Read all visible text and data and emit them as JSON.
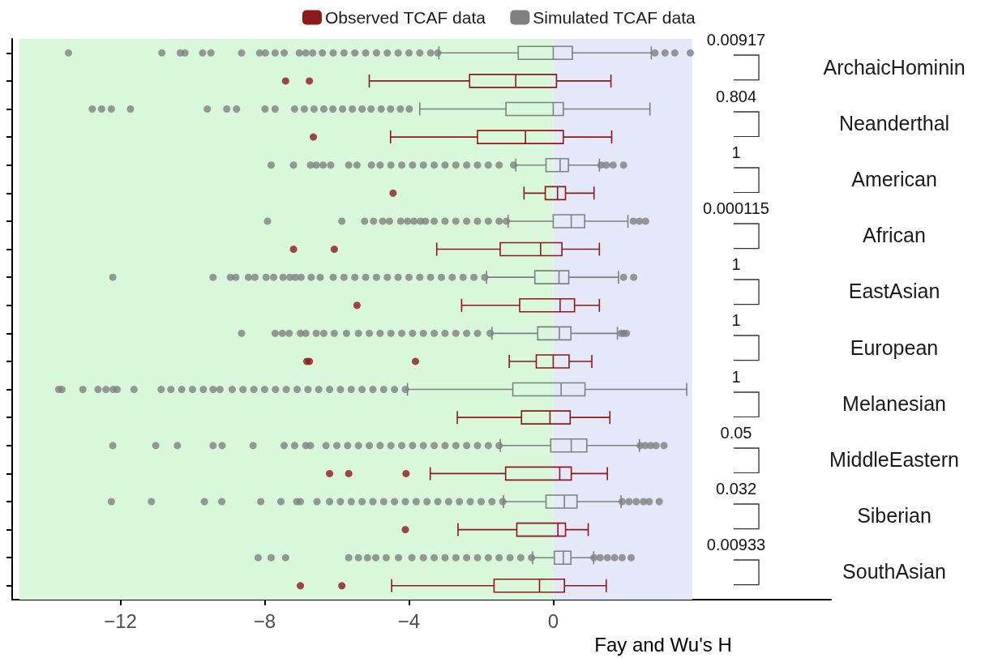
{
  "chart_data": {
    "type": "box",
    "orientation": "horizontal",
    "xlabel": "Fay and Wu's H",
    "legend": "top",
    "xlim": [
      -15,
      7.7
    ],
    "xticks": [
      {
        "value": -12,
        "label": "−12"
      },
      {
        "value": -8,
        "label": "−8"
      },
      {
        "value": -4,
        "label": "−4"
      },
      {
        "value": 0,
        "label": "0"
      }
    ],
    "categories": [
      "ArchaicHominin",
      "Neanderthal",
      "American",
      "African",
      "EastAsian",
      "European",
      "Melanesian",
      "MiddleEastern",
      "Siberian",
      "SouthAsian"
    ],
    "bands": [
      {
        "axis": "x",
        "from": -14.8,
        "to": 0,
        "color": "#d9f7da"
      },
      {
        "axis": "x",
        "from": 0,
        "to": 3.85,
        "color": "#e5e8f8"
      }
    ],
    "series": [
      {
        "name": "Observed TCAF data",
        "color": "#8b1a1a",
        "boxes": [
          {
            "low": -5.1,
            "q1": -2.32,
            "median": -1.04,
            "q3": 0.09,
            "high": 1.6,
            "outliers": [
              -7.42,
              -6.76
            ]
          },
          {
            "low": -4.51,
            "q1": -2.1,
            "median": -0.77,
            "q3": 0.28,
            "high": 1.62,
            "outliers": [
              -6.65
            ]
          },
          {
            "low": -0.81,
            "q1": -0.22,
            "median": 0.12,
            "q3": 0.34,
            "high": 1.13,
            "outliers": [
              -4.44
            ]
          },
          {
            "low": -3.23,
            "q1": -1.47,
            "median": -0.35,
            "q3": 0.24,
            "high": 1.28,
            "outliers": [
              -7.2,
              -6.07
            ]
          },
          {
            "low": -2.54,
            "q1": -0.93,
            "median": 0.19,
            "q3": 0.59,
            "high": 1.28,
            "outliers": [
              -5.44
            ]
          },
          {
            "low": -1.22,
            "q1": -0.47,
            "median": 0,
            "q3": 0.44,
            "high": 1.07,
            "outliers": [
              -6.83,
              -6.76,
              -3.82
            ]
          },
          {
            "low": -2.66,
            "q1": -0.88,
            "median": -0.09,
            "q3": 0.47,
            "high": 1.57
          },
          {
            "low": -3.41,
            "q1": -1.32,
            "median": 0.18,
            "q3": 0.5,
            "high": 1.5,
            "outliers": [
              -6.2,
              -5.67,
              -4.08
            ]
          },
          {
            "low": -2.64,
            "q1": -1.01,
            "median": 0.13,
            "q3": 0.34,
            "high": 0.97,
            "outliers": [
              -4.1
            ]
          },
          {
            "low": -4.48,
            "q1": -1.64,
            "median": -0.38,
            "q3": 0.31,
            "high": 1.47,
            "outliers": [
              -7.01,
              -5.86
            ]
          }
        ]
      },
      {
        "name": "Simulated TCAF data",
        "color": "#808080",
        "boxes": [
          {
            "low": -3.17,
            "q1": -0.97,
            "median": 0,
            "q3": 0.53,
            "high": 2.72,
            "outliers": [
              -13.44,
              -10.85,
              -10.34,
              -10.21,
              -9.72,
              -9.49,
              -8.64,
              -8.14,
              -7.98,
              -7.71,
              -7.46,
              -7.04,
              -6.86,
              -6.67,
              -6.4,
              -6.1,
              -5.8,
              -5.5,
              -5.2,
              -4.9,
              -4.6,
              -4.3,
              -4.0,
              -3.7,
              -3.4,
              -3.2,
              2.82,
              3.1,
              3.37,
              3.8
            ]
          },
          {
            "low": -3.7,
            "q1": -1.31,
            "median": 0,
            "q3": 0.28,
            "high": 2.68,
            "outliers": [
              -12.78,
              -12.52,
              -12.25,
              -11.72,
              -9.59,
              -9.05,
              -8.78,
              -7.99,
              -7.71,
              -7.17,
              -6.9,
              -6.63,
              -6.36,
              -6.11,
              -5.84,
              -5.57,
              -5.3,
              -5.05,
              -4.77,
              -4.51,
              -4.24,
              -3.99
            ]
          },
          {
            "low": -1.04,
            "q1": -0.2,
            "median": 0.19,
            "q3": 0.42,
            "high": 1.28,
            "outliers": [
              -7.82,
              -7.2,
              -6.73,
              -6.57,
              -6.38,
              -6.17,
              -5.67,
              -5.44,
              -5.04,
              -4.8,
              -4.5,
              -4.2,
              -3.9,
              -3.6,
              -3.3,
              -3.0,
              -2.7,
              -2.4,
              -2.1,
              -1.8,
              -1.5,
              -1.1,
              1.32,
              1.47,
              1.66,
              1.95
            ]
          },
          {
            "low": -1.25,
            "q1": 0,
            "median": 0.5,
            "q3": 0.87,
            "high": 2.07,
            "outliers": [
              -7.92,
              -5.86,
              -5.23,
              -4.98,
              -4.73,
              -4.54,
              -4.23,
              -4.04,
              -3.86,
              -3.68,
              -3.54,
              -3.3,
              -3.0,
              -2.7,
              -2.4,
              -2.1,
              -1.8,
              -1.5,
              -1.3,
              2.22,
              2.39,
              2.56
            ]
          },
          {
            "low": -1.85,
            "q1": -0.51,
            "median": 0.16,
            "q3": 0.43,
            "high": 1.81,
            "outliers": [
              -12.21,
              -9.43,
              -8.95,
              -8.8,
              -8.45,
              -8.27,
              -7.96,
              -7.75,
              -7.49,
              -7.3,
              -7.15,
              -6.99,
              -6.71,
              -6.46,
              -6.1,
              -5.8,
              -5.5,
              -5.2,
              -4.9,
              -4.6,
              -4.3,
              -4.0,
              -3.7,
              -3.4,
              -3.1,
              -2.8,
              -2.5,
              -2.2,
              -1.9,
              1.95,
              2.23
            ]
          },
          {
            "low": -1.7,
            "q1": -0.43,
            "median": 0.17,
            "q3": 0.49,
            "high": 1.78,
            "outliers": [
              -8.64,
              -7.71,
              -7.51,
              -7.32,
              -7.01,
              -6.86,
              -6.57,
              -6.36,
              -6.07,
              -5.73,
              -5.4,
              -5.1,
              -4.8,
              -4.5,
              -4.2,
              -3.9,
              -3.6,
              -3.3,
              -3.0,
              -2.7,
              -2.4,
              -2.1,
              -1.75,
              1.88,
              1.95,
              2.03
            ]
          },
          {
            "low": -4.04,
            "q1": -1.12,
            "median": 0.22,
            "q3": 0.88,
            "high": 3.7,
            "outliers": [
              -13.71,
              -13.62,
              -13.04,
              -12.62,
              -12.4,
              -12.2,
              -12.09,
              -11.62,
              -10.87,
              -10.6,
              -10.3,
              -10.0,
              -9.7,
              -9.43,
              -9.24,
              -8.9,
              -8.6,
              -8.3,
              -8.0,
              -7.7,
              -7.4,
              -7.1,
              -6.8,
              -6.5,
              -6.2,
              -5.9,
              -5.6,
              -5.3,
              -5.0,
              -4.7,
              -4.4,
              -4.1
            ]
          },
          {
            "low": -1.47,
            "q1": -0.07,
            "median": 0.5,
            "q3": 0.93,
            "high": 2.39,
            "outliers": [
              -12.21,
              -11.02,
              -10.42,
              -9.43,
              -9.18,
              -8.32,
              -7.46,
              -7.17,
              -6.86,
              -6.73,
              -6.3,
              -6.0,
              -5.7,
              -5.4,
              -5.1,
              -4.8,
              -4.5,
              -4.2,
              -3.9,
              -3.6,
              -3.3,
              -3.0,
              -2.7,
              -2.4,
              -2.1,
              -1.8,
              -1.5,
              2.41,
              2.55,
              2.7,
              2.85,
              3.07
            ]
          },
          {
            "low": -1.38,
            "q1": -0.2,
            "median": 0.31,
            "q3": 0.66,
            "high": 1.88,
            "outliers": [
              -12.25,
              -11.14,
              -9.67,
              -9.19,
              -8.11,
              -7.55,
              -7.11,
              -7.01,
              -6.55,
              -6.2,
              -5.9,
              -5.6,
              -5.3,
              -5.0,
              -4.7,
              -4.4,
              -4.1,
              -3.8,
              -3.5,
              -3.2,
              -2.9,
              -2.6,
              -2.3,
              -2.0,
              -1.7,
              -1.4,
              1.91,
              2.1,
              2.3,
              2.5,
              2.66,
              2.94
            ]
          },
          {
            "low": -0.57,
            "q1": 0.03,
            "median": 0.28,
            "q3": 0.49,
            "high": 1.12,
            "outliers": [
              -8.18,
              -7.82,
              -7.42,
              -5.67,
              -5.4,
              -5.15,
              -4.92,
              -4.63,
              -4.29,
              -3.92,
              -3.6,
              -3.3,
              -3.0,
              -2.7,
              -2.4,
              -2.1,
              -1.8,
              -1.5,
              -1.2,
              -0.9,
              -0.6,
              1.13,
              1.3,
              1.5,
              1.7,
              1.91,
              2.16
            ]
          }
        ]
      }
    ],
    "annotations": [
      "0.00917",
      "0.804",
      "1",
      "0.000115",
      "1",
      "1",
      "1",
      "0.05",
      "0.032",
      "0.00933"
    ]
  }
}
